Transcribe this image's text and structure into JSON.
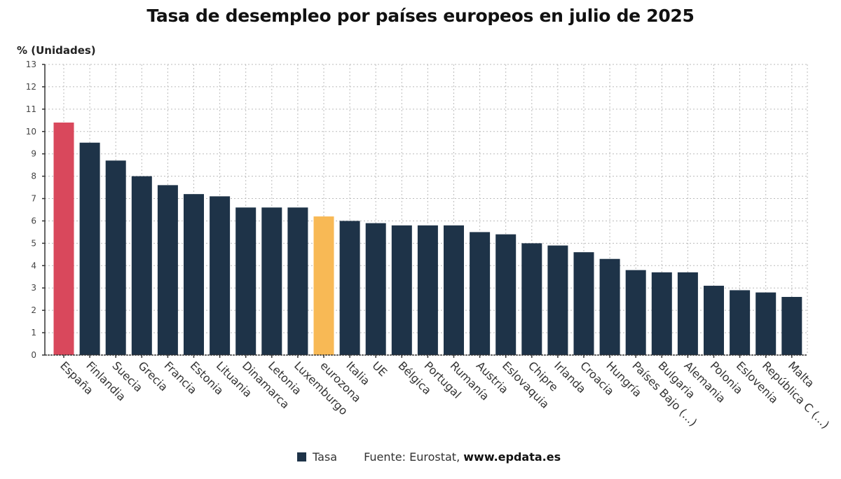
{
  "colors": {
    "default": "#1e3348",
    "highlight_spain": "#d9485c",
    "highlight_eurozone": "#f8b955",
    "grid": "#bbbbbb",
    "axis": "#333333"
  },
  "legend": {
    "series_label": "Tasa",
    "source_prefix": "Fuente: Eurostat, ",
    "source_site": "www.epdata.es"
  },
  "chart_data": {
    "type": "bar",
    "title": "Tasa de desempleo por países europeos en julio de 2025",
    "ylabel": "% (Unidades)",
    "xlabel": "",
    "ylim": [
      0,
      13
    ],
    "yticks": [
      0,
      1,
      2,
      3,
      4,
      5,
      6,
      7,
      8,
      9,
      10,
      11,
      12,
      13
    ],
    "grid": true,
    "legend_position": "bottom",
    "categories": [
      "España",
      "Finlandia",
      "Suecia",
      "Grecia",
      "Francia",
      "Estonia",
      "Lituania",
      "Dinamarca",
      "Letonia",
      "Luxemburgo",
      "eurozona",
      "Italia",
      "UE",
      "Bélgica",
      "Portugal",
      "Rumanía",
      "Austria",
      "Eslovaquia",
      "Chipre",
      "Irlanda",
      "Croacia",
      "Hungría",
      "Países Bajo (...)",
      "Bulgaria",
      "Alemania",
      "Polonia",
      "Eslovenia",
      "República C (...)",
      "Malta"
    ],
    "series": [
      {
        "name": "Tasa",
        "values": [
          10.4,
          9.5,
          8.7,
          8.0,
          7.6,
          7.2,
          7.1,
          6.6,
          6.6,
          6.6,
          6.2,
          6.0,
          5.9,
          5.8,
          5.8,
          5.8,
          5.5,
          5.4,
          5.0,
          4.9,
          4.6,
          4.3,
          3.8,
          3.7,
          3.7,
          3.1,
          2.9,
          2.8,
          2.6
        ]
      }
    ],
    "highlights": {
      "España": "highlight_spain",
      "eurozona": "highlight_eurozone"
    }
  }
}
